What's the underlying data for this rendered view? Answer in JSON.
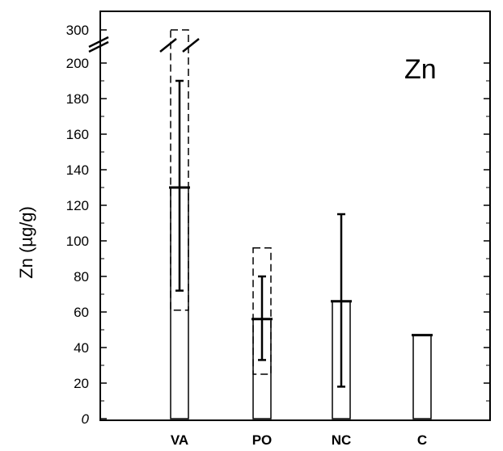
{
  "chart_data": {
    "type": "bar",
    "title": "",
    "panel_label": "Zn",
    "xlabel": "",
    "ylabel": "Zn (µg/g)",
    "categories": [
      "VA",
      "PO",
      "NC",
      "C"
    ],
    "values": [
      130,
      56,
      66,
      47
    ],
    "error_bars": [
      {
        "category": "VA",
        "low": 72,
        "high": 190
      },
      {
        "category": "PO",
        "low": 33,
        "high": 80
      },
      {
        "category": "NC",
        "low": 18,
        "high": 115
      },
      {
        "category": "C",
        "low": null,
        "high": null
      }
    ],
    "ranges": [
      {
        "category": "VA",
        "low": 61,
        "high": 300
      },
      {
        "category": "PO",
        "low": 25,
        "high": 96
      },
      {
        "category": "NC",
        "low": null,
        "high": null
      },
      {
        "category": "C",
        "low": null,
        "high": null
      }
    ],
    "ylim": [
      0,
      300
    ],
    "axis_break": {
      "from": 200,
      "to": 300
    },
    "y_ticks": [
      0,
      20,
      40,
      60,
      80,
      100,
      120,
      140,
      160,
      180,
      200,
      300
    ],
    "y_tick_labels": [
      "0",
      "20",
      "40",
      "60",
      "80",
      "100",
      "120",
      "140",
      "160",
      "180",
      "200",
      "300"
    ],
    "grid": false,
    "legend": "none",
    "colors": {
      "ink": "#000000",
      "background": "#ffffff"
    }
  }
}
